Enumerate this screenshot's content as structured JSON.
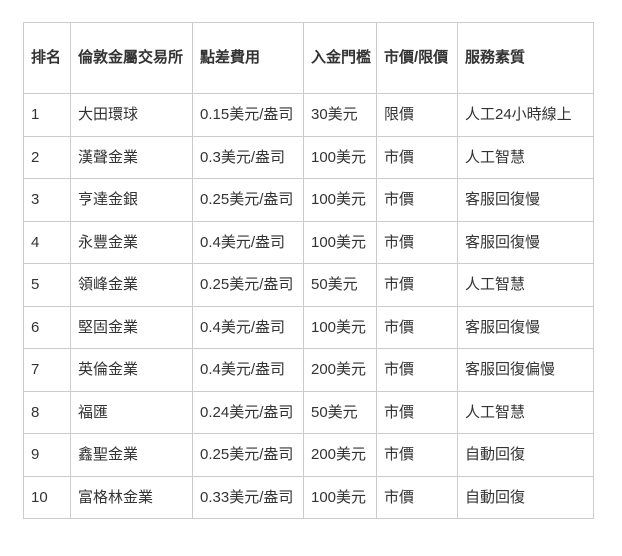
{
  "page": {
    "background": "#ffffff"
  },
  "table": {
    "title_semantic": "london-gold-dealers-comparison",
    "colors": {
      "border": "#cccccc",
      "text": "#333333",
      "background": "#ffffff"
    },
    "columns": [
      {
        "key": "rank",
        "label": "排名"
      },
      {
        "key": "exchange",
        "label": "倫敦金屬交易所"
      },
      {
        "key": "spread-fee",
        "label": "點差費用"
      },
      {
        "key": "deposit-threshold",
        "label": "入金門檻"
      },
      {
        "key": "order-type",
        "label": "市價/限價"
      },
      {
        "key": "service-quality",
        "label": "服務素質"
      }
    ],
    "rows": [
      [
        "1",
        "大田環球",
        "0.15美元/盎司",
        "30美元",
        "限價",
        "人工24小時線上"
      ],
      [
        "2",
        "漢聲金業",
        "0.3美元/盎司",
        "100美元",
        "市價",
        "人工智慧"
      ],
      [
        "3",
        "亨達金銀",
        "0.25美元/盎司",
        "100美元",
        "市價",
        "客服回復慢"
      ],
      [
        "4",
        "永豐金業",
        "0.4美元/盎司",
        "100美元",
        "市價",
        "客服回復慢"
      ],
      [
        "5",
        "領峰金業",
        "0.25美元/盎司",
        "50美元",
        "市價",
        "人工智慧"
      ],
      [
        "6",
        "堅固金業",
        "0.4美元/盎司",
        "100美元",
        "市價",
        "客服回復慢"
      ],
      [
        "7",
        "英倫金業",
        "0.4美元/盎司",
        "200美元",
        "市價",
        "客服回復偏慢"
      ],
      [
        "8",
        "福匯",
        "0.24美元/盎司",
        "50美元",
        "市價",
        "人工智慧"
      ],
      [
        "9",
        "鑫聖金業",
        "0.25美元/盎司",
        "200美元",
        "市價",
        "自動回復"
      ],
      [
        "10",
        "富格林金業",
        "0.33美元/盎司",
        "100美元",
        "市價",
        "自動回復"
      ]
    ]
  }
}
